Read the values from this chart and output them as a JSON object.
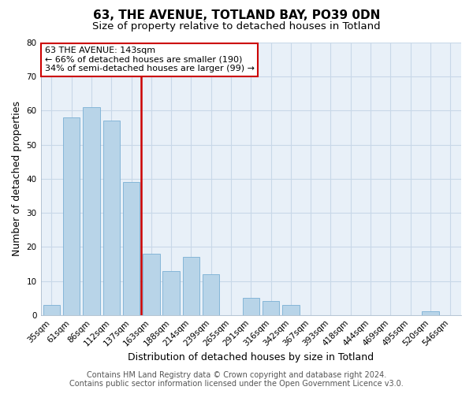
{
  "title": "63, THE AVENUE, TOTLAND BAY, PO39 0DN",
  "subtitle": "Size of property relative to detached houses in Totland",
  "xlabel": "Distribution of detached houses by size in Totland",
  "ylabel": "Number of detached properties",
  "categories": [
    "35sqm",
    "61sqm",
    "86sqm",
    "112sqm",
    "137sqm",
    "163sqm",
    "188sqm",
    "214sqm",
    "239sqm",
    "265sqm",
    "291sqm",
    "316sqm",
    "342sqm",
    "367sqm",
    "393sqm",
    "418sqm",
    "444sqm",
    "469sqm",
    "495sqm",
    "520sqm",
    "546sqm"
  ],
  "values": [
    3,
    58,
    61,
    57,
    39,
    18,
    13,
    17,
    12,
    0,
    5,
    4,
    3,
    0,
    0,
    0,
    0,
    0,
    0,
    1,
    0
  ],
  "bar_color": "#b8d4e8",
  "bar_edge_color": "#7aafd4",
  "vline_color": "#cc0000",
  "vline_x_idx": 4,
  "ylim": [
    0,
    80
  ],
  "yticks": [
    0,
    10,
    20,
    30,
    40,
    50,
    60,
    70,
    80
  ],
  "annotation_title": "63 THE AVENUE: 143sqm",
  "annotation_line1": "← 66% of detached houses are smaller (190)",
  "annotation_line2": "34% of semi-detached houses are larger (99) →",
  "annotation_box_facecolor": "#ffffff",
  "annotation_box_edgecolor": "#cc0000",
  "footer_line1": "Contains HM Land Registry data © Crown copyright and database right 2024.",
  "footer_line2": "Contains public sector information licensed under the Open Government Licence v3.0.",
  "plot_bg_color": "#e8f0f8",
  "fig_bg_color": "#ffffff",
  "grid_color": "#c8d8e8",
  "title_fontsize": 11,
  "subtitle_fontsize": 9.5,
  "axis_label_fontsize": 9,
  "tick_fontsize": 7.5,
  "annotation_fontsize": 8,
  "footer_fontsize": 7
}
